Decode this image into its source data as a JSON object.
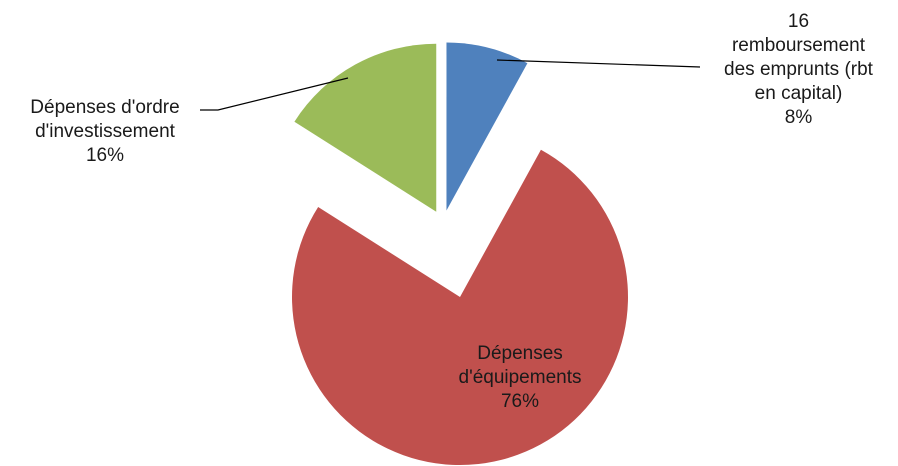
{
  "chart_data": {
    "type": "pie",
    "title": "",
    "slices": [
      {
        "label_lines": [
          "16",
          "remboursement",
          "des emprunts (rbt",
          "en capital)"
        ],
        "percent_label": "8%",
        "value": 8,
        "color": "#4f81bd"
      },
      {
        "label_lines": [
          "Dépenses",
          "d'équipements"
        ],
        "percent_label": "76%",
        "value": 76,
        "color": "#c0504d"
      },
      {
        "label_lines": [
          "Dépenses d'ordre",
          "d'investissement"
        ],
        "percent_label": "16%",
        "value": 16,
        "color": "#9bbb59"
      }
    ]
  }
}
